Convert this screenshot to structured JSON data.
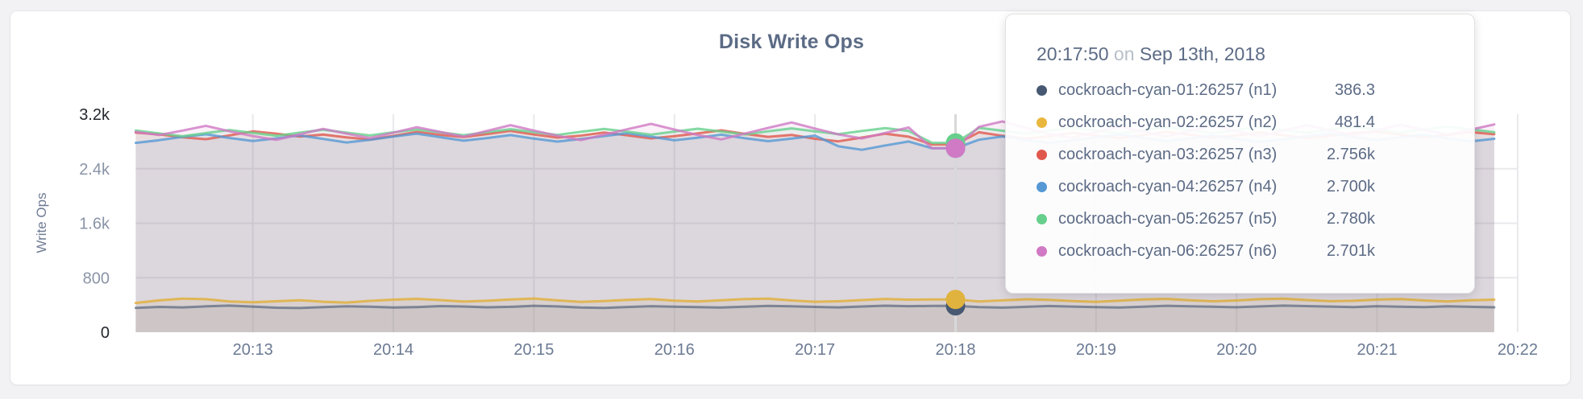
{
  "chart_data": {
    "type": "area",
    "title": "Disk Write Ops",
    "ylabel": "Write Ops",
    "xlabel": "",
    "ylim": [
      0,
      3200
    ],
    "grid": "on",
    "y_ticks": [
      {
        "label": "3.2k",
        "value": 3200,
        "strong": true,
        "gridline": false
      },
      {
        "label": "2.4k",
        "value": 2400,
        "strong": false,
        "gridline": true
      },
      {
        "label": "1.6k",
        "value": 1600,
        "strong": false,
        "gridline": true
      },
      {
        "label": "800",
        "value": 800,
        "strong": false,
        "gridline": true
      },
      {
        "label": "0",
        "value": 0,
        "strong": true,
        "gridline": false
      }
    ],
    "x_ticks": [
      {
        "label": "20:13",
        "t": 50
      },
      {
        "label": "20:14",
        "t": 110
      },
      {
        "label": "20:15",
        "t": 170
      },
      {
        "label": "20:16",
        "t": 230
      },
      {
        "label": "20:17",
        "t": 290
      },
      {
        "label": "20:18",
        "t": 350
      },
      {
        "label": "20:19",
        "t": 410
      },
      {
        "label": "20:20",
        "t": 470
      },
      {
        "label": "20:21",
        "t": 530
      },
      {
        "label": "20:22",
        "t": 590
      }
    ],
    "x_start_time": "20:12:10",
    "x_end_time": "20:21:50",
    "x_step_seconds": 10,
    "series": [
      {
        "name": "cockroach-cyan-01:26257 (n1)",
        "color": "#475872",
        "line_opacity": 0.62,
        "values": [
          358,
          372,
          365,
          380,
          391,
          377,
          360,
          355,
          368,
          381,
          375,
          362,
          370,
          384,
          378,
          366,
          373,
          388,
          379,
          364,
          357,
          371,
          383,
          376,
          369,
          362,
          374,
          386,
          380,
          372,
          365,
          378,
          390,
          382,
          386.3,
          386.3,
          368,
          361,
          373,
          385,
          377,
          370,
          363,
          376,
          388,
          381,
          374,
          367,
          379,
          391,
          384,
          377,
          370,
          382,
          375,
          368,
          380,
          373,
          366
        ]
      },
      {
        "name": "cockroach-cyan-02:26257 (n2)",
        "color": "#e0b23e",
        "line_opacity": 0.85,
        "values": [
          430,
          468,
          492,
          485,
          452,
          441,
          455,
          470,
          448,
          436,
          460,
          478,
          490,
          472,
          450,
          462,
          481,
          495,
          468,
          446,
          458,
          476,
          488,
          464,
          452,
          470,
          486,
          492,
          466,
          448,
          455,
          472,
          489,
          478,
          481.4,
          481.4,
          452,
          468,
          484,
          476,
          458,
          446,
          464,
          482,
          490,
          470,
          455,
          467,
          485,
          493,
          472,
          456,
          462,
          480,
          488,
          466,
          452,
          470,
          478
        ]
      },
      {
        "name": "cockroach-cyan-03:26257 (n3)",
        "color": "#e0584d",
        "line_opacity": 0.8,
        "values": [
          2930,
          2905,
          2862,
          2834,
          2890,
          2948,
          2915,
          2872,
          2901,
          2860,
          2828,
          2884,
          2940,
          2898,
          2865,
          2910,
          2955,
          2902,
          2858,
          2886,
          2932,
          2890,
          2846,
          2878,
          2920,
          2964,
          2912,
          2868,
          2896,
          2840,
          2802,
          2858,
          2914,
          2870,
          2756,
          2756,
          2936,
          2884,
          2842,
          2876,
          2928,
          2886,
          2850,
          2894,
          2942,
          2900,
          2856,
          2888,
          2934,
          2892,
          2848,
          2882,
          2926,
          2944,
          2902,
          2860,
          2896,
          2938,
          2906
        ]
      },
      {
        "name": "cockroach-cyan-04:26257 (n4)",
        "color": "#5598d4",
        "line_opacity": 0.8,
        "values": [
          2780,
          2820,
          2868,
          2906,
          2852,
          2808,
          2846,
          2890,
          2838,
          2786,
          2824,
          2872,
          2916,
          2864,
          2812,
          2850,
          2894,
          2842,
          2798,
          2836,
          2880,
          2922,
          2870,
          2818,
          2856,
          2900,
          2848,
          2804,
          2842,
          2886,
          2730,
          2678,
          2742,
          2800,
          2700,
          2700,
          2826,
          2874,
          2822,
          2778,
          2816,
          2860,
          2904,
          2852,
          2808,
          2846,
          2890,
          2838,
          2794,
          2832,
          2876,
          2918,
          2866,
          2822,
          2860,
          2898,
          2846,
          2802,
          2840
        ]
      },
      {
        "name": "cockroach-cyan-05:26257 (n5)",
        "color": "#67cf8c",
        "line_opacity": 0.8,
        "values": [
          2960,
          2918,
          2876,
          2924,
          2968,
          2926,
          2884,
          2930,
          2972,
          2930,
          2888,
          2934,
          2976,
          2934,
          2892,
          2938,
          2980,
          2938,
          2896,
          2942,
          2984,
          2942,
          2900,
          2946,
          2988,
          2946,
          2904,
          2950,
          2992,
          2950,
          2908,
          2954,
          2996,
          2954,
          2780,
          2780,
          3000,
          2958,
          2916,
          2962,
          3004,
          2962,
          2920,
          2966,
          3008,
          2966,
          2924,
          2970,
          3012,
          2970,
          2928,
          2974,
          3016,
          2974,
          2932,
          2978,
          3020,
          2978,
          2936
        ]
      },
      {
        "name": "cockroach-cyan-06:26257 (n6)",
        "color": "#d079c4",
        "line_opacity": 0.8,
        "values": [
          2940,
          2895,
          2960,
          3030,
          2950,
          2880,
          2825,
          2905,
          2985,
          2915,
          2850,
          2930,
          3010,
          2940,
          2870,
          2955,
          3040,
          2960,
          2885,
          2820,
          2900,
          2980,
          3060,
          2975,
          2895,
          2830,
          2915,
          3000,
          3080,
          2990,
          2905,
          2845,
          2925,
          3005,
          2701,
          2701,
          3015,
          3095,
          3000,
          2910,
          2855,
          2940,
          3020,
          2945,
          2875,
          2955,
          3035,
          2950,
          2880,
          2960,
          3040,
          2965,
          2890,
          2970,
          3045,
          2970,
          2900,
          2975,
          3050
        ]
      }
    ]
  },
  "tooltip": {
    "time": "20:17:50",
    "separator": "on",
    "date": "Sep 13th, 2018",
    "hover_index": 35,
    "rows": [
      {
        "label": "cockroach-cyan-01:26257 (n1)",
        "value": "386.3",
        "numeric": 386.3,
        "color": "#475872"
      },
      {
        "label": "cockroach-cyan-02:26257 (n2)",
        "value": "481.4",
        "numeric": 481.4,
        "color": "#eab73e"
      },
      {
        "label": "cockroach-cyan-03:26257 (n3)",
        "value": "2.756k",
        "numeric": 2756,
        "color": "#e0584d"
      },
      {
        "label": "cockroach-cyan-04:26257 (n4)",
        "value": "2.700k",
        "numeric": 2700,
        "color": "#5598d4"
      },
      {
        "label": "cockroach-cyan-05:26257 (n5)",
        "value": "2.780k",
        "numeric": 2780,
        "color": "#67cf8c"
      },
      {
        "label": "cockroach-cyan-06:26257 (n6)",
        "value": "2.701k",
        "numeric": 2701,
        "color": "#d079c4"
      }
    ]
  },
  "colors": {
    "grid": "#e9e9ec",
    "hover_line": "#d8d8da",
    "title_text": "#5c6b85",
    "card_background": "#ffffff",
    "page_background": "#f2f2f4"
  }
}
